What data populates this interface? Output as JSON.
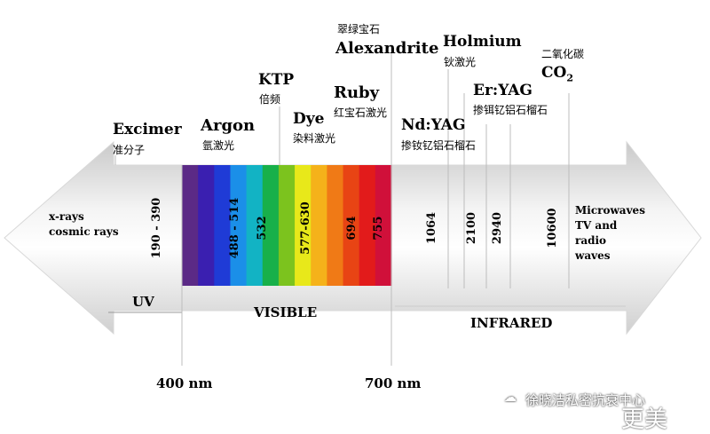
{
  "lasers": {
    "excimer": {
      "name": "Excimer",
      "cn": "准分子"
    },
    "argon": {
      "name": "Argon",
      "cn": "氩激光"
    },
    "ktp": {
      "name": "KTP",
      "cn": "倍频"
    },
    "dye": {
      "name": "Dye",
      "cn": "染料激光"
    },
    "ruby": {
      "name": "Ruby",
      "cn": "红宝石激光"
    },
    "alexandrite": {
      "name": "Alexandrite",
      "cn": "翠绿宝石"
    },
    "ndyag": {
      "name": "Nd:YAG",
      "cn": "掺钕钇铝石榴石"
    },
    "holmium": {
      "name": "Holmium",
      "cn": "钬激光"
    },
    "eryag": {
      "name": "Er:YAG",
      "cn": "掺铒钇铝石榴石"
    },
    "co2": {
      "name": "CO",
      "sub": "2",
      "cn": "二氧化碳"
    }
  },
  "wavelengths": {
    "excimer": "190 - 390",
    "argon": "488 - 514",
    "ktp": "532",
    "dye": "577-630",
    "ruby": "694",
    "alexandrite": "755",
    "ndyag": "1064",
    "holmium": "2100",
    "eryag": "2940",
    "co2": "10600"
  },
  "left_end": {
    "line1": "x-rays",
    "line2": "cosmic rays"
  },
  "right_end": {
    "line1": "Microwaves",
    "line2": "TV and",
    "line3": "radio",
    "line4": "waves"
  },
  "bands": {
    "uv": "UV",
    "visible": "VISIBLE",
    "infrared": "INFRARED"
  },
  "markers": {
    "left": "400 nm",
    "right": "700 nm"
  },
  "watermark": {
    "text": "徐晓洁私密抗衰中心",
    "brand": "更美"
  },
  "colors": {
    "spectrum": [
      "#5b2a86",
      "#3a1fb0",
      "#1f3bd6",
      "#1b8fe8",
      "#12b3c4",
      "#18b04a",
      "#7cc31e",
      "#e8e81a",
      "#f5b21a",
      "#f07a16",
      "#e84414",
      "#e21b1b",
      "#d0103a"
    ]
  }
}
